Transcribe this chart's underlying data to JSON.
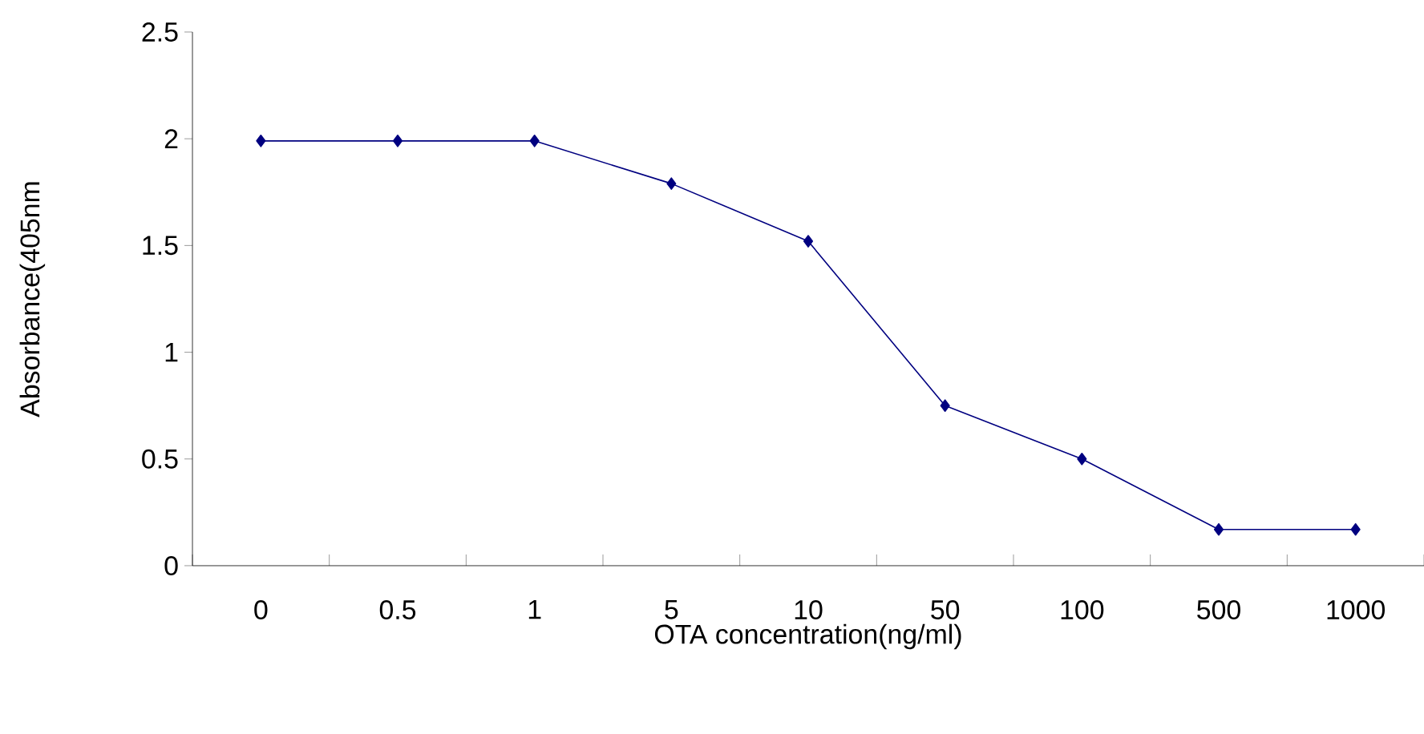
{
  "chart_data": {
    "type": "line",
    "xlabel": "OTA concentration(ng/ml)",
    "ylabel": "Absorbance(405nm",
    "categories": [
      "0",
      "0.5",
      "1",
      "5",
      "10",
      "50",
      "100",
      "500",
      "1000"
    ],
    "series": [
      {
        "color": "#000080",
        "values": [
          1.99,
          1.99,
          1.99,
          1.79,
          1.52,
          0.75,
          0.5,
          0.17,
          0.17
        ]
      }
    ],
    "ylim": [
      0,
      2.5
    ],
    "yticks": [
      0,
      0.5,
      1,
      1.5,
      2,
      2.5
    ],
    "grid": false,
    "marker": "diamond",
    "line_style": "solid"
  }
}
